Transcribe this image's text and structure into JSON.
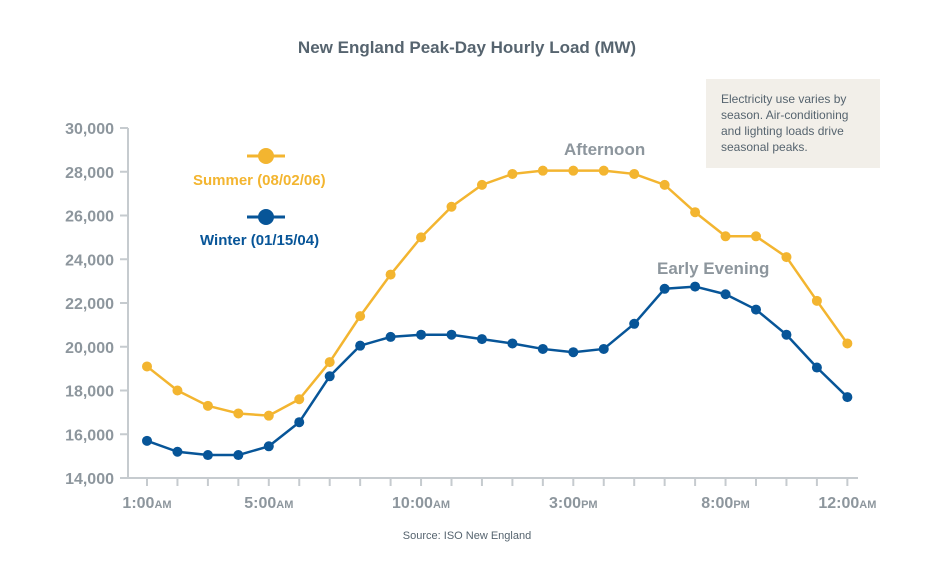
{
  "chart_data": {
    "type": "line",
    "title": "New England Peak-Day Hourly Load (MW)",
    "source": "Source: ISO New England",
    "ylim": [
      14000,
      30000
    ],
    "y_ticks": [
      14000,
      16000,
      18000,
      20000,
      22000,
      24000,
      26000,
      28000,
      30000
    ],
    "y_tick_labels": [
      "14,000",
      "16,000",
      "18,000",
      "20,000",
      "22,000",
      "24,000",
      "26,000",
      "28,000",
      "30,000"
    ],
    "x": [
      1,
      2,
      3,
      4,
      5,
      6,
      7,
      8,
      9,
      10,
      11,
      12,
      13,
      14,
      15,
      16,
      17,
      18,
      19,
      20,
      21,
      22,
      23,
      24
    ],
    "x_ticks": [
      {
        "hour": 1,
        "label": "1:00",
        "suffix": "AM"
      },
      {
        "hour": 5,
        "label": "5:00",
        "suffix": "AM"
      },
      {
        "hour": 10,
        "label": "10:00",
        "suffix": "AM"
      },
      {
        "hour": 15,
        "label": "3:00",
        "suffix": "PM"
      },
      {
        "hour": 20,
        "label": "8:00",
        "suffix": "PM"
      },
      {
        "hour": 24,
        "label": "12:00",
        "suffix": "AM"
      }
    ],
    "series": [
      {
        "name": "Summer (08/02/06)",
        "color": "#f3b530",
        "values": [
          19100,
          18000,
          17300,
          16950,
          16850,
          17600,
          19300,
          21400,
          23300,
          25000,
          26400,
          27400,
          27900,
          28050,
          28050,
          28050,
          27900,
          27400,
          26150,
          25050,
          25050,
          24100,
          22100,
          20150
        ]
      },
      {
        "name": "Winter (01/15/04)",
        "color": "#075598",
        "values": [
          15700,
          15200,
          15050,
          15050,
          15450,
          16550,
          18650,
          20050,
          20450,
          20550,
          20550,
          20350,
          20150,
          19900,
          19750,
          19900,
          21050,
          22650,
          22750,
          22400,
          21700,
          20550,
          19050,
          17700
        ]
      }
    ],
    "legend": [
      {
        "label": "Summer (08/02/06)",
        "color": "#f3b530"
      },
      {
        "label": "Winter (01/15/04)",
        "color": "#075598"
      }
    ],
    "annotations": {
      "afternoon": "Afternoon",
      "early_evening": "Early Evening"
    },
    "note": [
      "Electricity use varies by",
      "season. Air-conditioning",
      "and lighting loads drive",
      "seasonal peaks."
    ]
  }
}
